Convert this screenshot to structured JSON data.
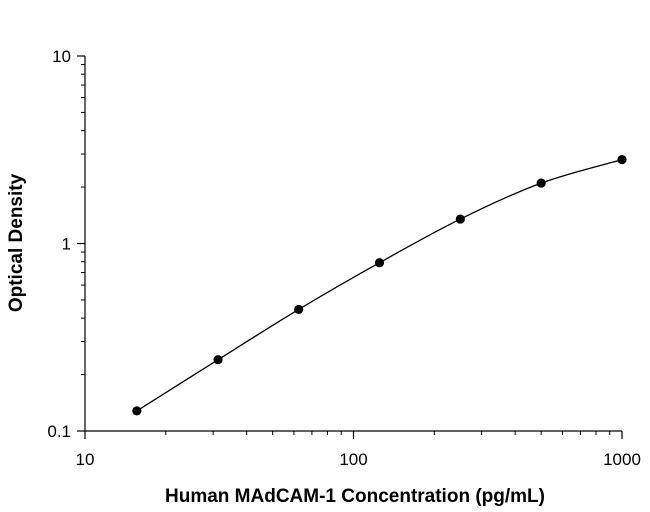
{
  "chart_data": {
    "type": "scatter",
    "title": "",
    "xlabel": "Human MAdCAM-1 Concentration (pg/mL)",
    "ylabel": "Optical Density",
    "xscale": "log",
    "yscale": "log",
    "xlim": [
      10,
      1000
    ],
    "ylim": [
      0.1,
      10
    ],
    "xticks": [
      {
        "value": 10,
        "label": "10"
      },
      {
        "value": 100,
        "label": "100"
      },
      {
        "value": 1000,
        "label": "1000"
      }
    ],
    "yticks": [
      {
        "value": 0.1,
        "label": "0.1"
      },
      {
        "value": 1,
        "label": "1"
      },
      {
        "value": 10,
        "label": "10"
      }
    ],
    "grid": false,
    "legend": "none",
    "marker_color": "#000000",
    "series": [
      {
        "x": [
          15.6,
          31.3,
          62.5,
          125,
          250,
          500,
          1000
        ],
        "y": [
          0.128,
          0.24,
          0.445,
          0.79,
          1.35,
          2.1,
          2.8
        ],
        "fit_curve": true
      }
    ]
  }
}
